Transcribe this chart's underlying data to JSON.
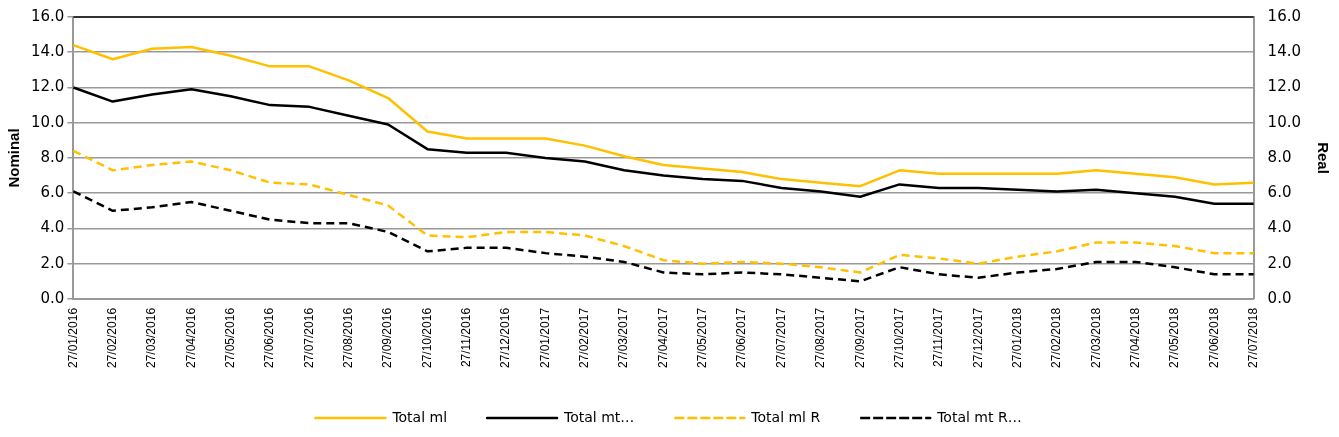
{
  "chart_data": {
    "type": "line",
    "ylabel": "Nominal",
    "y2label": "Real",
    "categories": [
      "27/01/2016",
      "27/02/2016",
      "27/03/2016",
      "27/04/2016",
      "27/05/2016",
      "27/06/2016",
      "27/07/2016",
      "27/08/2016",
      "27/09/2016",
      "27/10/2016",
      "27/11/2016",
      "27/12/2016",
      "27/01/2017",
      "27/02/2017",
      "27/03/2017",
      "27/04/2017",
      "27/05/2017",
      "27/06/2017",
      "27/07/2017",
      "27/08/2017",
      "27/09/2017",
      "27/10/2017",
      "27/11/2017",
      "27/12/2017",
      "27/01/2018",
      "27/02/2018",
      "27/03/2018",
      "27/04/2018",
      "27/05/2018",
      "27/06/2018",
      "27/07/2018"
    ],
    "series": [
      {
        "name": "Total ml",
        "color": "#ffc000",
        "line_style": "solid",
        "values": [
          14.4,
          13.6,
          14.2,
          14.3,
          13.8,
          13.2,
          13.2,
          12.4,
          11.4,
          9.5,
          9.1,
          9.1,
          9.1,
          8.7,
          8.1,
          7.6,
          7.4,
          7.2,
          6.8,
          6.6,
          6.4,
          7.3,
          7.1,
          7.1,
          7.1,
          7.1,
          7.3,
          7.1,
          6.9,
          6.5,
          6.6
        ]
      },
      {
        "name": "Total mt…",
        "color": "#000000",
        "line_style": "solid",
        "values": [
          12.0,
          11.2,
          11.6,
          11.9,
          11.5,
          11.0,
          10.9,
          10.4,
          9.9,
          8.5,
          8.3,
          8.3,
          8.0,
          7.8,
          7.3,
          7.0,
          6.8,
          6.7,
          6.3,
          6.1,
          5.8,
          6.5,
          6.3,
          6.3,
          6.2,
          6.1,
          6.2,
          6.0,
          5.8,
          5.4,
          5.4
        ]
      },
      {
        "name": "Total ml R",
        "color": "#ffc000",
        "line_style": "dashed",
        "values": [
          8.4,
          7.3,
          7.6,
          7.8,
          7.3,
          6.6,
          6.5,
          5.9,
          5.3,
          3.6,
          3.5,
          3.8,
          3.8,
          3.6,
          3.0,
          2.2,
          2.0,
          2.1,
          2.0,
          1.8,
          1.5,
          2.5,
          2.3,
          2.0,
          2.4,
          2.7,
          3.2,
          3.2,
          3.0,
          2.6,
          2.6
        ]
      },
      {
        "name": "Total mt R…",
        "color": "#000000",
        "line_style": "dashed",
        "values": [
          6.1,
          5.0,
          5.2,
          5.5,
          5.0,
          4.5,
          4.3,
          4.3,
          3.8,
          2.7,
          2.9,
          2.9,
          2.6,
          2.4,
          2.1,
          1.5,
          1.4,
          1.5,
          1.4,
          1.2,
          1.0,
          1.8,
          1.4,
          1.2,
          1.5,
          1.7,
          2.1,
          2.1,
          1.8,
          1.4,
          1.4
        ]
      }
    ],
    "ylim": [
      0,
      16
    ],
    "yticks": [
      {
        "value": 0,
        "label": "0.0"
      },
      {
        "value": 2,
        "label": "2.0"
      },
      {
        "value": 4,
        "label": "4.0"
      },
      {
        "value": 6,
        "label": "6.0"
      },
      {
        "value": 8,
        "label": "8.0"
      },
      {
        "value": 10,
        "label": "10.0"
      },
      {
        "value": 12,
        "label": "12.0"
      },
      {
        "value": 14,
        "label": "14.0"
      },
      {
        "value": 16,
        "label": "16.0"
      }
    ],
    "y2lim": [
      0,
      16
    ],
    "y2ticks": [
      {
        "value": 0,
        "label": "0.0"
      },
      {
        "value": 2,
        "label": "2.0"
      },
      {
        "value": 4,
        "label": "4.0"
      },
      {
        "value": 6,
        "label": "6.0"
      },
      {
        "value": 8,
        "label": "8.0"
      },
      {
        "value": 10,
        "label": "10.0"
      },
      {
        "value": 12,
        "label": "12.0"
      },
      {
        "value": 14,
        "label": "14.0"
      },
      {
        "value": 16,
        "label": "16.0"
      }
    ],
    "grid": "y",
    "legend": "bottom",
    "marker": "none"
  }
}
